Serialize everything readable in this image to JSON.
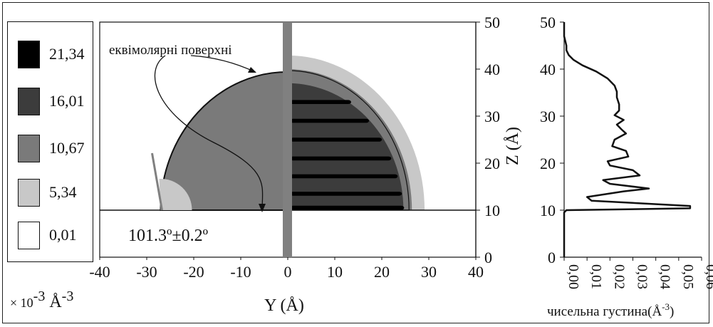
{
  "legend": {
    "items": [
      {
        "label": "21,34",
        "color": "#000000"
      },
      {
        "label": "16,01",
        "color": "#3c3c3c"
      },
      {
        "label": "10,67",
        "color": "#7a7a7a"
      },
      {
        "label": "5,34",
        "color": "#c8c8c8"
      },
      {
        "label": "0,01",
        "color": "#ffffff"
      }
    ],
    "unit_prefix": "× 10",
    "unit_exp": "-3",
    "unit_main": " Å",
    "unit_exp2": "-3"
  },
  "chart_data": [
    {
      "type": "heatmap",
      "title": "",
      "xlabel": "Y (Å)",
      "ylabel": "Z (Å)",
      "xlim": [
        -40,
        40
      ],
      "ylim": [
        0,
        50
      ],
      "x_ticks": [
        "-40",
        "-30",
        "-20",
        "-10",
        "0",
        "10",
        "20",
        "30",
        "40"
      ],
      "y_ticks": [
        "0",
        "10",
        "20",
        "30",
        "40",
        "50"
      ],
      "surface_label": "еквімолярні поверхні",
      "contact_angle_label": "101.3º±0.2º",
      "contact_angle": 101.3,
      "contact_angle_error": 0.2,
      "drop_radius": 30,
      "substrate_z": 10,
      "layers_z": [
        10.5,
        13.5,
        17.2,
        21,
        25,
        29,
        33
      ],
      "colors": {
        "level4": "#000000",
        "level3": "#3c3c3c",
        "level2": "#7a7a7a",
        "level1": "#c8c8c8",
        "divider": "#808080"
      }
    },
    {
      "type": "line",
      "title": "",
      "xlabel": "чисельна густина(Å",
      "xlabel_exp": "-3",
      "xlabel_end": ")",
      "xlim": [
        0,
        0.06
      ],
      "ylim": [
        0,
        50
      ],
      "x_ticks": [
        "0,00",
        "0,01",
        "0,02",
        "0,03",
        "0,04",
        "0,05",
        "0,06"
      ],
      "y_ticks": [
        "0",
        "10",
        "20",
        "30",
        "40",
        "50"
      ],
      "series": [
        {
          "x": [
            0.0,
            0.0,
            0.0,
            0.001,
            0.055,
            0.055,
            0.012,
            0.01,
            0.026,
            0.037,
            0.02,
            0.017,
            0.033,
            0.03,
            0.02,
            0.019,
            0.028,
            0.027,
            0.021,
            0.022,
            0.027,
            0.025,
            0.023,
            0.026,
            0.022,
            0.024,
            0.024,
            0.023,
            0.023,
            0.022,
            0.019,
            0.014,
            0.008,
            0.004,
            0.002,
            0.001,
            0.001,
            0.0,
            0.0
          ],
          "y": [
            0,
            5,
            9.5,
            10,
            10.4,
            10.9,
            12.0,
            12.8,
            14.0,
            14.6,
            15.6,
            16.4,
            17.4,
            18.5,
            19.5,
            20.4,
            21.4,
            22.6,
            23.6,
            25.0,
            26.3,
            27.2,
            28.2,
            29.2,
            30.2,
            31.2,
            32.5,
            34,
            35.2,
            36.5,
            38,
            39.5,
            40.8,
            42,
            43,
            44,
            45,
            47,
            50
          ]
        }
      ]
    }
  ]
}
